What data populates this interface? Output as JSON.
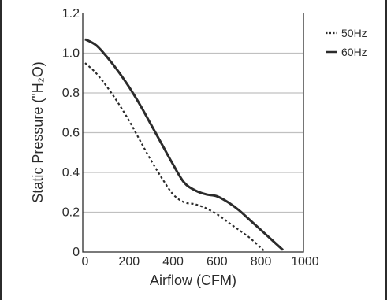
{
  "chart_data": {
    "type": "line",
    "xlabel": "Airflow (CFM)",
    "ylabel": "Static Pressure (\"H₂O)",
    "xlim": [
      0,
      1000
    ],
    "ylim": [
      0,
      1.2
    ],
    "xticks": [
      "0",
      "200",
      "400",
      "600",
      "800",
      "1000"
    ],
    "yticks": [
      "0",
      "0.2",
      "0.4",
      "0.6",
      "0.8",
      "1.0",
      "1.2"
    ],
    "grid": "horizontal",
    "legend_position": "top-right, outside plot",
    "series": [
      {
        "name": "50Hz",
        "style": "dotted",
        "color": "#2b2b2b",
        "x": [
          0,
          50,
          100,
          150,
          200,
          250,
          300,
          350,
          400,
          450,
          500,
          550,
          600,
          650,
          700,
          750,
          800,
          820
        ],
        "y": [
          0.95,
          0.9,
          0.83,
          0.75,
          0.66,
          0.56,
          0.46,
          0.37,
          0.29,
          0.25,
          0.24,
          0.22,
          0.19,
          0.15,
          0.11,
          0.07,
          0.02,
          0.0
        ]
      },
      {
        "name": "60Hz",
        "style": "solid",
        "color": "#2b2b2b",
        "x": [
          0,
          50,
          100,
          150,
          200,
          250,
          300,
          350,
          400,
          450,
          500,
          550,
          600,
          650,
          700,
          750,
          800,
          850,
          900
        ],
        "y": [
          1.07,
          1.04,
          0.98,
          0.91,
          0.83,
          0.74,
          0.64,
          0.54,
          0.44,
          0.35,
          0.31,
          0.29,
          0.28,
          0.25,
          0.21,
          0.16,
          0.11,
          0.06,
          0.01
        ]
      }
    ]
  }
}
